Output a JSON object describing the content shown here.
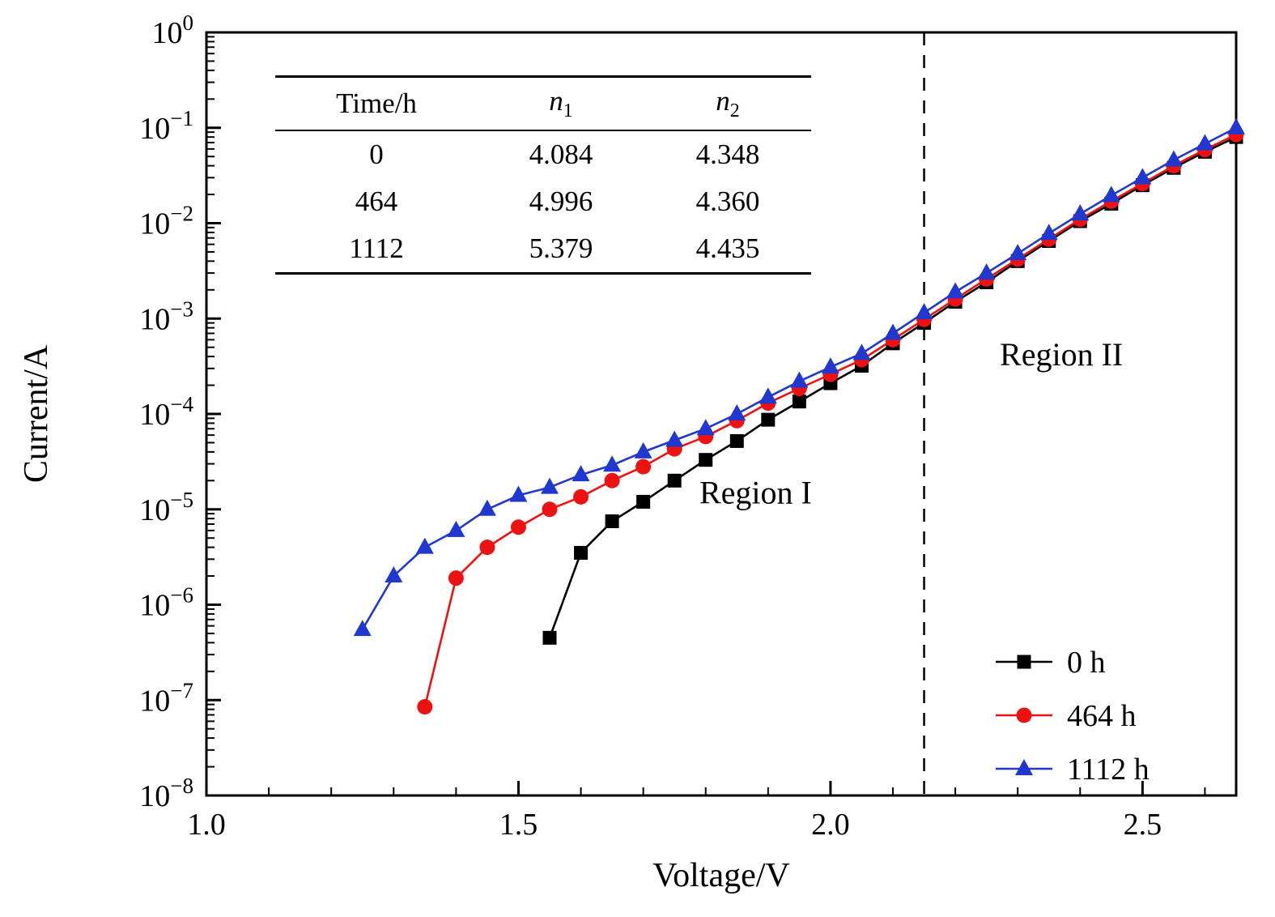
{
  "chart_data": {
    "type": "line",
    "title": "",
    "xlabel": "Voltage/V",
    "ylabel": "Current/A",
    "xlim": [
      1.0,
      2.65
    ],
    "ylim_log": [
      -8,
      0
    ],
    "x_ticks": [
      1.0,
      1.5,
      2.0,
      2.5
    ],
    "y_tick_exponents": [
      0,
      -1,
      -2,
      -3,
      -4,
      -5,
      -6,
      -7,
      -8
    ],
    "log_y": true,
    "grid": false,
    "legend_position": "lower right",
    "divider_x": 2.15,
    "annotations": [
      {
        "text": "Region I",
        "x": 1.88,
        "y_log": -4.82
      },
      {
        "text": "Region II",
        "x": 2.37,
        "y_log": -3.37
      }
    ],
    "series": [
      {
        "name": "0 h",
        "color": "#000000",
        "marker": "square",
        "x": [
          1.55,
          1.6,
          1.65,
          1.7,
          1.75,
          1.8,
          1.85,
          1.9,
          1.95,
          2.0,
          2.05,
          2.1,
          2.15,
          2.2,
          2.25,
          2.3,
          2.35,
          2.4,
          2.45,
          2.5,
          2.55,
          2.6,
          2.65
        ],
        "y": [
          4.5e-07,
          3.5e-06,
          7.5e-06,
          1.2e-05,
          2e-05,
          3.3e-05,
          5.2e-05,
          8.7e-05,
          0.000135,
          0.00021,
          0.00032,
          0.00055,
          0.0009,
          0.0015,
          0.0024,
          0.004,
          0.0065,
          0.0105,
          0.016,
          0.025,
          0.038,
          0.056,
          0.08
        ]
      },
      {
        "name": "464 h",
        "color": "#ee1111",
        "marker": "circle",
        "x": [
          1.35,
          1.4,
          1.45,
          1.5,
          1.55,
          1.6,
          1.65,
          1.7,
          1.75,
          1.8,
          1.85,
          1.9,
          1.95,
          2.0,
          2.05,
          2.1,
          2.15,
          2.2,
          2.25,
          2.3,
          2.35,
          2.4,
          2.45,
          2.5,
          2.55,
          2.6,
          2.65
        ],
        "y": [
          8.5e-08,
          1.9e-06,
          4e-06,
          6.5e-06,
          1e-05,
          1.35e-05,
          2e-05,
          2.8e-05,
          4.3e-05,
          5.8e-05,
          8.5e-05,
          0.00013,
          0.000185,
          0.00026,
          0.00037,
          0.0006,
          0.00098,
          0.0016,
          0.0026,
          0.0042,
          0.0068,
          0.011,
          0.017,
          0.026,
          0.04,
          0.059,
          0.085
        ]
      },
      {
        "name": "1112 h",
        "color": "#2038d0",
        "marker": "triangle-up",
        "x": [
          1.25,
          1.3,
          1.35,
          1.4,
          1.45,
          1.5,
          1.55,
          1.6,
          1.65,
          1.7,
          1.75,
          1.8,
          1.85,
          1.9,
          1.95,
          2.0,
          2.05,
          2.1,
          2.15,
          2.2,
          2.25,
          2.3,
          2.35,
          2.4,
          2.45,
          2.5,
          2.55,
          2.6,
          2.65
        ],
        "y": [
          5.5e-07,
          2e-06,
          4e-06,
          6e-06,
          1e-05,
          1.4e-05,
          1.7e-05,
          2.3e-05,
          2.9e-05,
          4e-05,
          5.3e-05,
          7e-05,
          0.0001,
          0.00015,
          0.00022,
          0.00031,
          0.00043,
          0.0007,
          0.00115,
          0.0019,
          0.003,
          0.0048,
          0.0078,
          0.0125,
          0.0195,
          0.03,
          0.046,
          0.068,
          0.1
        ]
      }
    ]
  },
  "inset_table": {
    "headers": [
      {
        "text": "Time/h",
        "italic": false
      },
      {
        "text": "n",
        "sub": "1",
        "italic": true
      },
      {
        "text": "n",
        "sub": "2",
        "italic": true
      }
    ],
    "rows": [
      [
        "0",
        "4.084",
        "4.348"
      ],
      [
        "464",
        "4.996",
        "4.360"
      ],
      [
        "1112",
        "5.379",
        "4.435"
      ]
    ]
  }
}
